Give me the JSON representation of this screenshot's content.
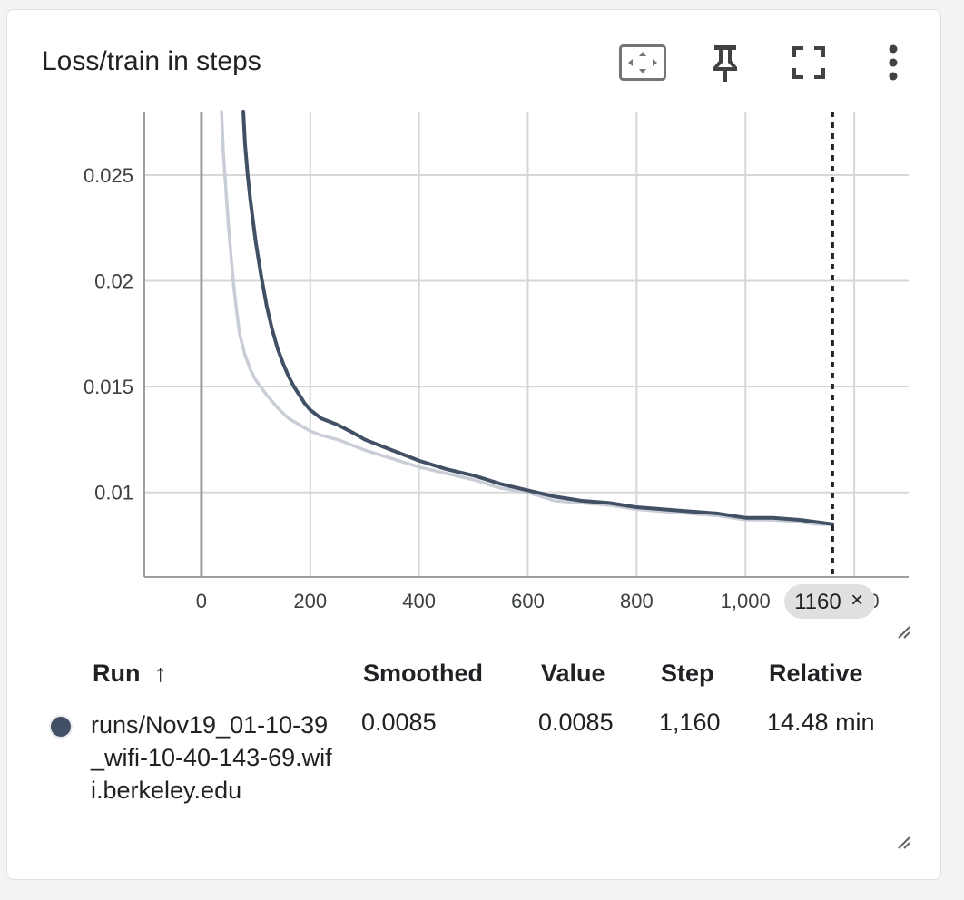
{
  "card": {
    "title": "Loss/train in steps"
  },
  "toolbar": {
    "fit_domain_icon": "fit-to-domain-icon",
    "pin_icon": "pin-icon",
    "fullscreen_icon": "fullscreen-icon",
    "more_icon": "more-vert-icon"
  },
  "colors": {
    "smoothed_line": "#425066",
    "raw_line": "#c8cdd6",
    "grid": "#d7d7d7",
    "axis": "#9e9e9e",
    "chip": "#e0e0e0"
  },
  "chart_data": {
    "type": "line",
    "title": "Loss/train in steps",
    "xlabel": "",
    "ylabel": "",
    "xlim": [
      -105,
      1300
    ],
    "ylim": [
      0.006,
      0.028
    ],
    "x_ticks": [
      0,
      200,
      400,
      600,
      800,
      1000,
      1200
    ],
    "x_tick_labels": [
      "0",
      "200",
      "400",
      "600",
      "800",
      "1,000",
      "1,200"
    ],
    "y_ticks": [
      0.01,
      0.015,
      0.02,
      0.025
    ],
    "y_tick_labels": [
      "0.01",
      "0.015",
      "0.02",
      "0.025"
    ],
    "grid": true,
    "series": [
      {
        "role": "smoothed",
        "x": [
          77,
          80,
          85,
          90,
          100,
          110,
          120,
          130,
          140,
          150,
          160,
          170,
          180,
          190,
          200,
          210,
          220,
          250,
          280,
          300,
          350,
          400,
          450,
          500,
          550,
          600,
          650,
          700,
          750,
          800,
          850,
          900,
          950,
          1000,
          1050,
          1100,
          1130,
          1160
        ],
        "y": [
          0.028,
          0.0265,
          0.025,
          0.0238,
          0.0218,
          0.0202,
          0.0188,
          0.0177,
          0.0168,
          0.0161,
          0.0155,
          0.015,
          0.0146,
          0.0142,
          0.0139,
          0.0137,
          0.0135,
          0.0132,
          0.0128,
          0.0125,
          0.012,
          0.0115,
          0.0111,
          0.0108,
          0.0104,
          0.0101,
          0.0098,
          0.0096,
          0.0095,
          0.0093,
          0.0092,
          0.0091,
          0.009,
          0.0088,
          0.0088,
          0.0087,
          0.0086,
          0.0085
        ]
      },
      {
        "role": "raw",
        "x": [
          37,
          40,
          45,
          50,
          55,
          60,
          65,
          70,
          80,
          90,
          100,
          120,
          140,
          160,
          180,
          200,
          220,
          250,
          280,
          300,
          350,
          400,
          450,
          500,
          550,
          600,
          650,
          700,
          750,
          800,
          850,
          900,
          950,
          1000,
          1050,
          1100,
          1130,
          1160
        ],
        "y": [
          0.028,
          0.0262,
          0.0243,
          0.0225,
          0.021,
          0.0196,
          0.0185,
          0.0175,
          0.0165,
          0.0158,
          0.0153,
          0.0146,
          0.014,
          0.0135,
          0.0132,
          0.0129,
          0.0127,
          0.0125,
          0.0122,
          0.012,
          0.0116,
          0.0112,
          0.0109,
          0.0106,
          0.0102,
          0.01,
          0.0096,
          0.0095,
          0.0094,
          0.0092,
          0.0091,
          0.009,
          0.0089,
          0.0087,
          0.0087,
          0.0086,
          0.0085,
          0.0085
        ]
      }
    ],
    "cursor_step": 1160,
    "cursor_label": "1160",
    "cursor_close": "×"
  },
  "table": {
    "headers": {
      "run": "Run",
      "sort_arrow": "↑",
      "smoothed": "Smoothed",
      "value": "Value",
      "step": "Step",
      "relative": "Relative"
    },
    "rows": [
      {
        "run": "runs/Nov19_01-10-39_wifi-10-40-143-69.wifi.berkeley.edu",
        "smoothed": "0.0085",
        "value": "0.0085",
        "step": "1,160",
        "relative": "14.48 min"
      }
    ]
  }
}
